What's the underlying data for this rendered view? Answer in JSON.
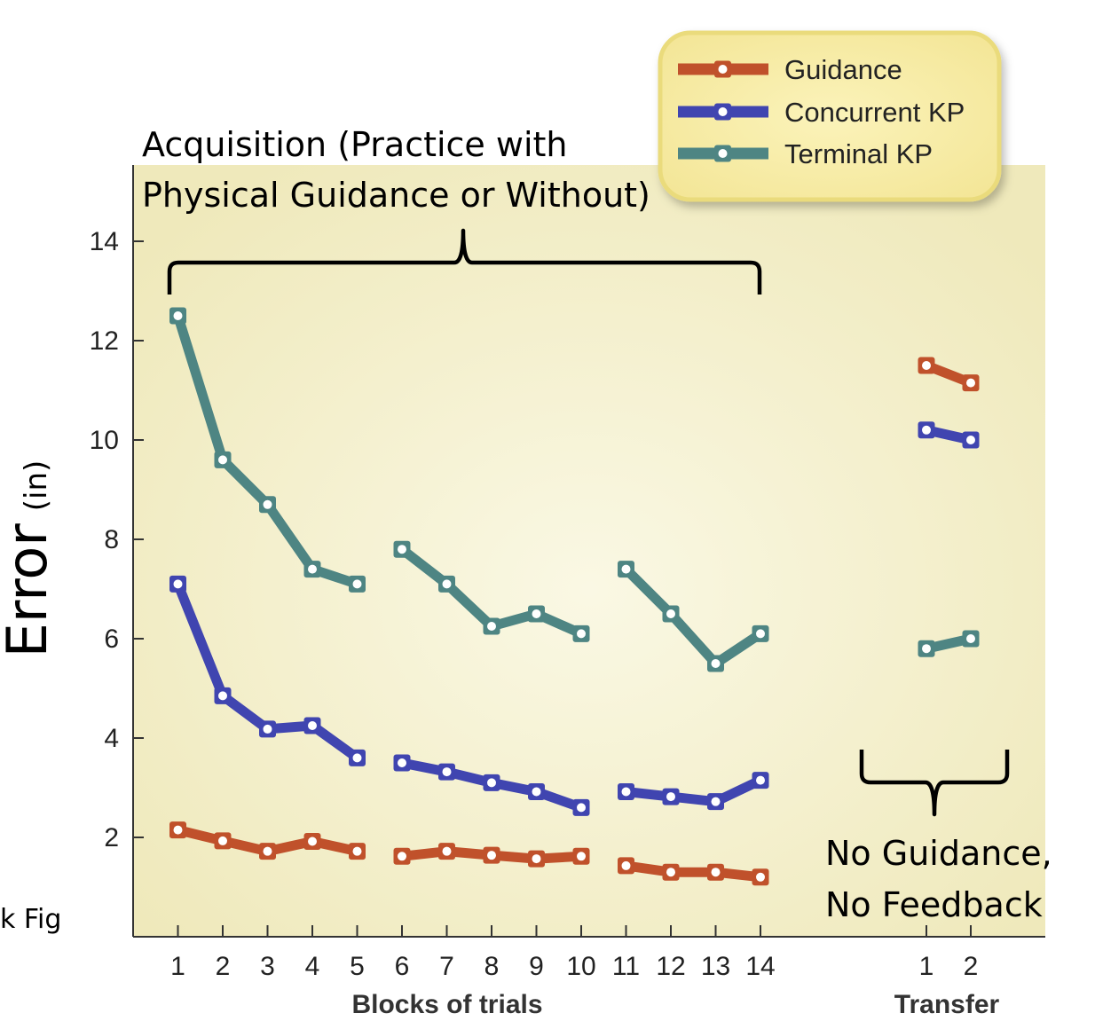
{
  "chart_data": {
    "type": "line",
    "title": "",
    "ylabel": "Error",
    "ylabel_unit": "(in)",
    "xlabel": "Blocks of trials",
    "transfer_label": "Transfer",
    "ylim": [
      0,
      15
    ],
    "yticks": [
      2,
      4,
      6,
      8,
      10,
      12,
      14
    ],
    "acquisition_categories": [
      1,
      2,
      3,
      4,
      5,
      6,
      7,
      8,
      9,
      10,
      11,
      12,
      13,
      14
    ],
    "transfer_categories": [
      1,
      2
    ],
    "segments": [
      [
        1,
        5
      ],
      [
        6,
        10
      ],
      [
        11,
        14
      ]
    ],
    "series": [
      {
        "name": "Guidance",
        "color": "#c0512b",
        "acquisition": [
          2.15,
          1.93,
          1.72,
          1.92,
          1.72,
          1.62,
          1.72,
          1.64,
          1.57,
          1.62,
          1.43,
          1.3,
          1.3,
          1.2
        ],
        "transfer": [
          11.5,
          11.15
        ]
      },
      {
        "name": "Concurrent KP",
        "color": "#4045b0",
        "acquisition": [
          7.1,
          4.85,
          4.18,
          4.25,
          3.6,
          3.5,
          3.32,
          3.1,
          2.92,
          2.6,
          2.92,
          2.82,
          2.72,
          3.15
        ],
        "transfer": [
          10.2,
          10.0
        ]
      },
      {
        "name": "Terminal KP",
        "color": "#4e8583",
        "acquisition": [
          12.5,
          9.6,
          8.7,
          7.4,
          7.1,
          7.8,
          7.1,
          6.25,
          6.5,
          6.1,
          7.4,
          6.5,
          5.5,
          6.1
        ],
        "transfer": [
          5.8,
          6.0
        ]
      }
    ],
    "annotations": {
      "acquisition_line1": "Acquisition (Practice with",
      "acquisition_line2": "Physical Guidance or Without)",
      "transfer_line1": "No Guidance,",
      "transfer_line2": "No Feedback",
      "cropped_left": "k Fig"
    },
    "legend_position": "top-right",
    "colors": {
      "background": "#f3efc4",
      "axis": "#333333",
      "legend_border": "#eadb7c"
    }
  }
}
